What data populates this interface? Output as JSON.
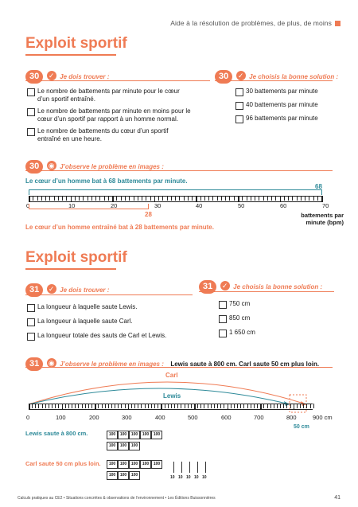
{
  "header": {
    "text": "Aide à la résolution de problèmes, de plus, de moins"
  },
  "p30": {
    "title": "Exploit sportif",
    "num": "30",
    "find_label": "Je dois trouver :",
    "find_items": [
      "Le nombre de battements par minute pour le cœur d’un sportif entraîné.",
      "Le nombre de battements par minute en moins pour le cœur d’un sportif par rapport à un homme normal.",
      "Le nombre de battements du cœur d’un sportif entraîné en une heure."
    ],
    "choose_label": "Je choisis la bonne solution :",
    "choose_items": [
      "30 battements par minute",
      "40 battements par minute",
      "96 battements par minute"
    ],
    "observe_label": "J’observe le problème en images :",
    "line1": "Le cœur d’un homme bat à 68 battements par minute.",
    "val68": "68",
    "val28": "28",
    "line2": "Le cœur d’un homme entraîné bat à 28 battements par minute.",
    "axis_ticks": [
      "0",
      "10",
      "20",
      "30",
      "40",
      "50",
      "60",
      "70"
    ],
    "axis_unit": "battements par minute (bpm)"
  },
  "p31": {
    "title": "Exploit sportif",
    "num": "31",
    "find_label": "Je dois trouver :",
    "find_items": [
      "La longueur à laquelle saute Lewis.",
      "La longueur à laquelle saute Carl.",
      "La longueur totale des sauts de Carl et Lewis."
    ],
    "choose_label": "Je choisis la bonne solution :",
    "choose_items": [
      "750 cm",
      "850 cm",
      "1 650 cm"
    ],
    "observe_label": "J’observe le problème en images :",
    "observe_text": "Lewis saute à 800 cm. Carl saute 50 cm plus loin.",
    "carl": "Carl",
    "lewis": "Lewis",
    "axis_ticks": [
      "0",
      "100",
      "200",
      "300",
      "400",
      "500",
      "600",
      "700",
      "800",
      "900 cm"
    ],
    "cm50": "50 cm",
    "lewis_line": "Lewis saute à 800 cm.",
    "carl_line": "Carl saute 50 cm plus loin.",
    "box": "100",
    "ten": "10"
  },
  "footer": {
    "text": "Calculs pratiques au CE2 • Situations concrètes & observations de l’environnement • Les Éditions Buissonnières",
    "page": "41"
  },
  "colors": {
    "accent": "#ef7b54",
    "teal": "#2e8a99"
  }
}
